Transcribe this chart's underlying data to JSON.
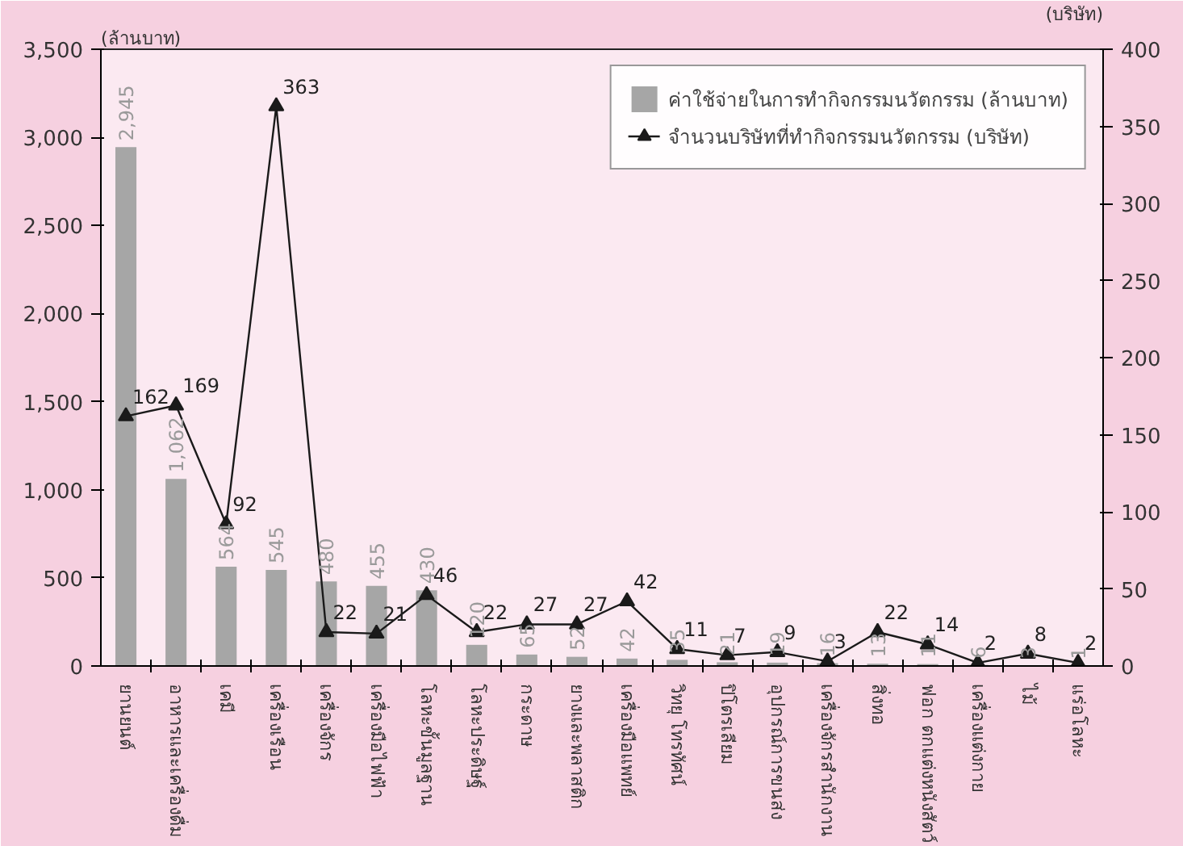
{
  "chart_data": {
    "type": "bar",
    "ylabel": "(ล้านบาท)",
    "y2label": "(บริษัท)",
    "categories": [
      "ยานยนต์",
      "อาหารและเครื่องดื่ม",
      "เคมี",
      "เครื่องเรือน",
      "เครื่องจักร",
      "เครื่องมือไฟฟ้า",
      "โลหะขั้นมูลฐาน",
      "โลหะประดิษฐ์",
      "กระดาษ",
      "ยางและพลาสติก",
      "เครื่องมือแพทย์",
      "วิทยุ โทรทัศน์",
      "ปิโตรเลียม",
      "อุปกรณ์การขนส่ง",
      "เครื่องจักรสำนักงาน",
      "สิ่งทอ",
      "ฟอก ตกแต่งหนังสัตว์",
      "เครื่องแต่งกาย",
      "ไม้",
      "แร่อโลหะ"
    ],
    "series": [
      {
        "name": "ค่าใช้จ่ายในการทำกิจกรรมนวัตกรรม (ล้านบาท)",
        "color": "#a6a6a6",
        "values": [
          2945,
          1062,
          564,
          545,
          480,
          455,
          430,
          120,
          65,
          52,
          42,
          35,
          21,
          19,
          16,
          13,
          11,
          6,
          3,
          1
        ],
        "value_labels": [
          "2,945",
          "1,062",
          "564",
          "545",
          "480",
          "455",
          "430",
          "120",
          "65",
          "52",
          "42",
          "35",
          "21",
          "19",
          "16",
          "13",
          "11",
          "6",
          "3",
          "1"
        ]
      },
      {
        "name": "จำนวนบริษัทที่ทำกิจกรรมนวัตกรรม (บริษัท)",
        "type": "line",
        "axis": "y2",
        "color": "#1a1a1a",
        "marker": "triangle",
        "line_style": "solid",
        "values": [
          162,
          169,
          92,
          363,
          22,
          21,
          46,
          22,
          27,
          27,
          42,
          11,
          7,
          9,
          3,
          22,
          14,
          2,
          8,
          2
        ],
        "value_labels": [
          "162",
          "169",
          "92",
          "363",
          "22",
          "21",
          "46",
          "22",
          "27",
          "27",
          "42",
          "11",
          "7",
          "9",
          "3",
          "22",
          "14",
          "2",
          "8",
          "2"
        ]
      }
    ],
    "ylim": [
      0,
      3500
    ],
    "yticks": [
      0,
      {
        "value": 500,
        "label": "500"
      },
      {
        "value": 1000,
        "label": "1,000"
      },
      {
        "value": 1500,
        "label": "1,500"
      },
      {
        "value": 2000,
        "label": "2,000"
      },
      {
        "value": 2500,
        "label": "2,500"
      },
      {
        "value": 3000,
        "label": "3,000"
      },
      {
        "value": 3500,
        "label": "3,500"
      }
    ],
    "y2lim": [
      0,
      400
    ],
    "y2ticks": [
      0,
      50,
      100,
      150,
      200,
      250,
      300,
      350,
      400
    ],
    "grid": false,
    "legend": "top right"
  }
}
